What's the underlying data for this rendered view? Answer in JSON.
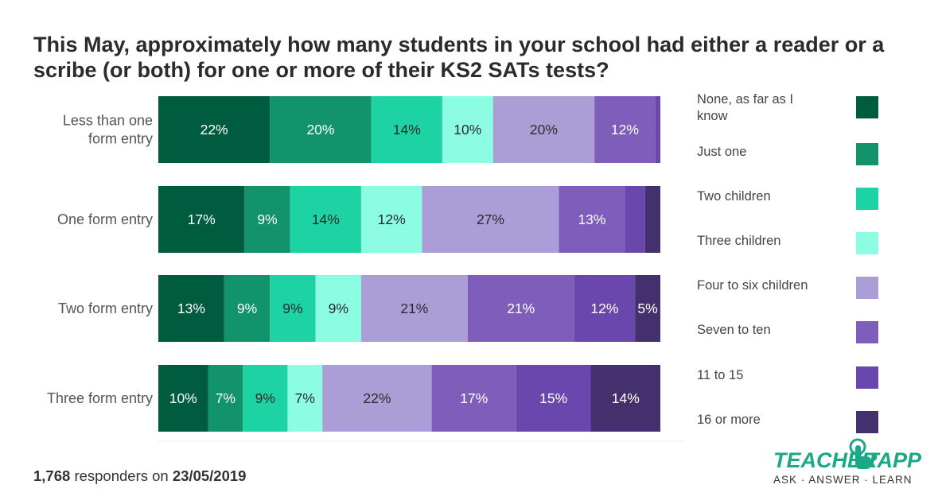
{
  "title": "This May, approximately how many students in your school had either a reader or a scribe (or both) for one or more of their KS2 SATs tests?",
  "chart_data": {
    "type": "bar",
    "orientation": "horizontal",
    "stacked": true,
    "title": "This May, approximately how many students in your school had either a reader or a scribe (or both) for one or more of their KS2 SATs tests?",
    "xlabel": "",
    "ylabel": "",
    "xlim": [
      0,
      100
    ],
    "categories": [
      "Less than one form entry",
      "One form entry",
      "Two form entry",
      "Three form entry"
    ],
    "category_lines": [
      [
        "Less than one",
        "form entry"
      ],
      [
        "One form entry"
      ],
      [
        "Two form entry"
      ],
      [
        "Three form entry"
      ]
    ],
    "series": [
      {
        "name": "None, as far as I know",
        "color": "#005c3f",
        "values": [
          22,
          17,
          13,
          10
        ],
        "labels": [
          "22%",
          "17%",
          "13%",
          "10%"
        ]
      },
      {
        "name": "Just one",
        "color": "#12936c",
        "values": [
          20,
          9,
          9,
          7
        ],
        "labels": [
          "20%",
          "9%",
          "9%",
          "7%"
        ]
      },
      {
        "name": "Two children",
        "color": "#1ed3a3",
        "values": [
          14,
          14,
          9,
          9
        ],
        "labels": [
          "14%",
          "14%",
          "9%",
          "9%"
        ]
      },
      {
        "name": "Three children",
        "color": "#8cfce2",
        "values": [
          10,
          12,
          9,
          7
        ],
        "labels": [
          "10%",
          "12%",
          "9%",
          "7%"
        ]
      },
      {
        "name": "Four to six children",
        "color": "#ab9dd6",
        "values": [
          20,
          27,
          21,
          22
        ],
        "labels": [
          "20%",
          "27%",
          "21%",
          "22%"
        ]
      },
      {
        "name": "Seven to ten",
        "color": "#7e5dbb",
        "values": [
          12,
          13,
          21,
          17
        ],
        "labels": [
          "12%",
          "13%",
          "21%",
          "17%"
        ]
      },
      {
        "name": "11 to 15",
        "color": "#6a47ac",
        "values": [
          1,
          4,
          12,
          15
        ],
        "labels": [
          "",
          "",
          "12%",
          "15%"
        ]
      },
      {
        "name": "16 or more",
        "color": "#45306e",
        "values": [
          0,
          3,
          5,
          14
        ],
        "labels": [
          "",
          "",
          "5%",
          "14%"
        ]
      }
    ],
    "legend_position": "right",
    "grid": false
  },
  "footer": {
    "count": "1,768",
    "middle": "responders on",
    "date": "23/05/2019"
  },
  "logo": {
    "left_word": "TEACHER",
    "right_word": "TAPP",
    "tagline": "ASK · ANSWER · LEARN"
  }
}
